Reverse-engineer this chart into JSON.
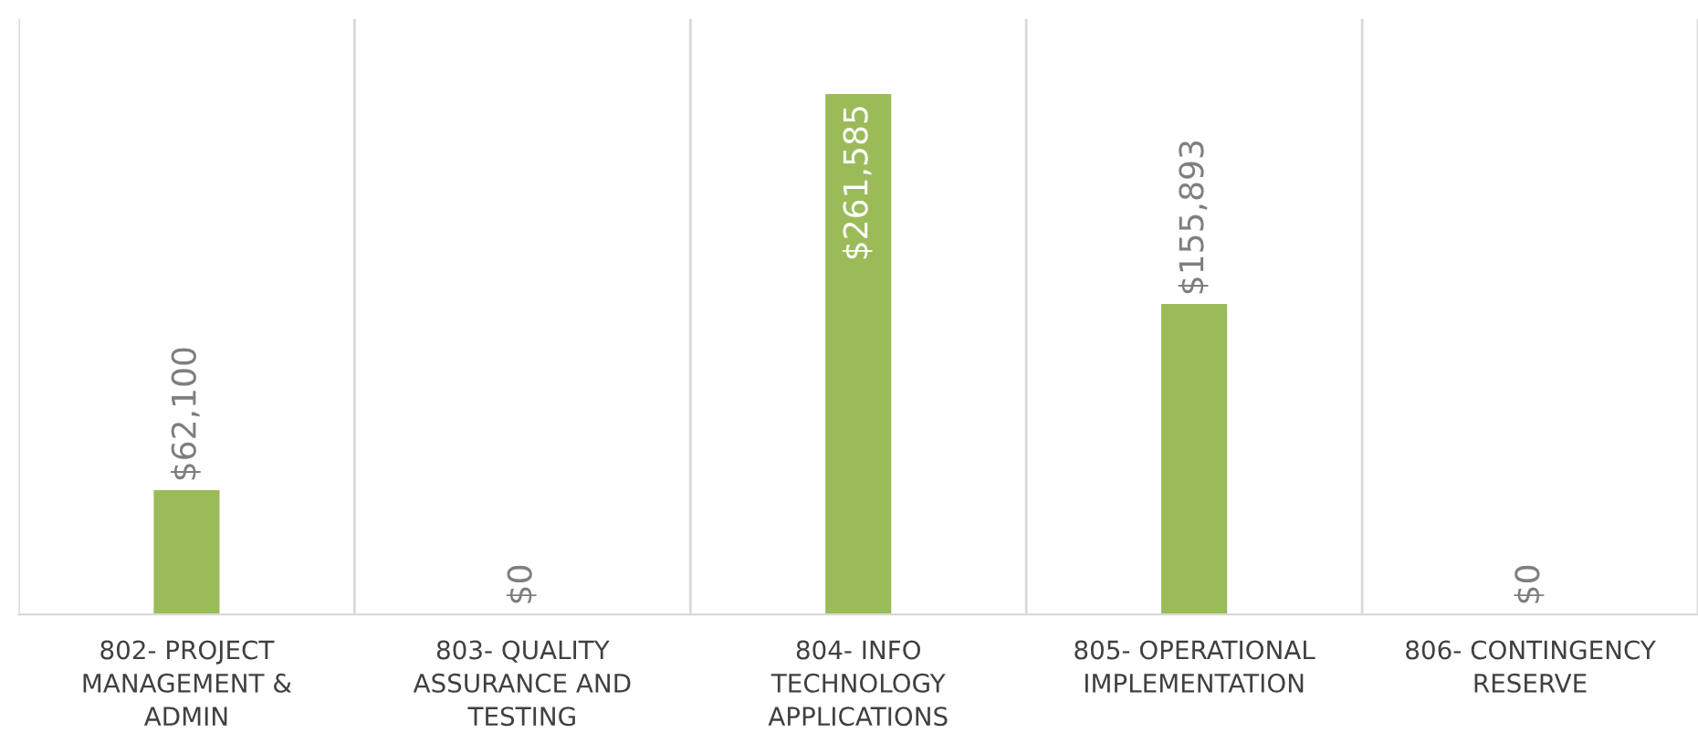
{
  "chart_data": {
    "type": "bar",
    "categories": [
      "802- PROJECT\nMANAGEMENT &\nADMIN",
      "803- QUALITY\nASSURANCE AND\nTESTING",
      "804- INFO\nTECHNOLOGY\nAPPLICATIONS",
      "805- OPERATIONAL\nIMPLEMENTATION",
      "806- CONTINGENCY\nRESERVE"
    ],
    "values": [
      62100,
      0,
      261585,
      155893,
      0
    ],
    "value_labels": [
      "$62,100",
      "$0",
      "$261,585",
      "$155,893",
      "$0"
    ],
    "color": "#9bbb59",
    "ylim": [
      0,
      300000
    ],
    "grid": "x",
    "tick_labels": "x"
  }
}
